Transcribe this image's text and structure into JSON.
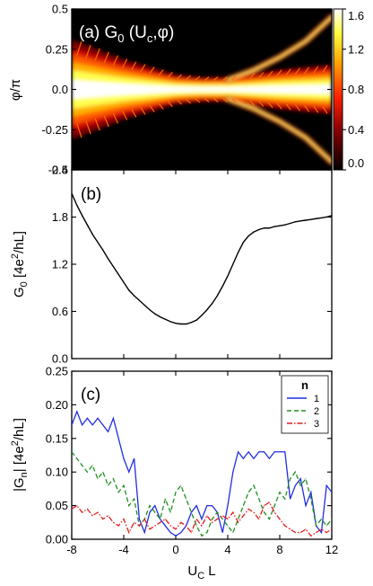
{
  "chart_data": [
    {
      "type": "heatmap",
      "panel": "(a)",
      "title_parts": {
        "prefix": "(a) G",
        "sub0": "0",
        "mid": " (U",
        "subc": "c",
        "suffix": ",φ)"
      },
      "ylabel": "φ/π",
      "xlim": [
        -8,
        12
      ],
      "ylim": [
        -0.5,
        0.5
      ],
      "yticks": [
        "-0.5",
        "-0.25",
        "0.0",
        "0.25",
        "0.5"
      ],
      "yticks_values": [
        -0.5,
        -0.25,
        0,
        0.25,
        0.5
      ],
      "colorbar": {
        "range": [
          0,
          1.6
        ],
        "ticks": [
          "0.0",
          "0.4",
          "0.8",
          "1.2",
          "1.6"
        ],
        "colormap": "hot",
        "colors": [
          "#000000",
          "#8b0000",
          "#ff2000",
          "#ff9a00",
          "#ffff40",
          "#ffffff"
        ]
      },
      "description_values": {
        "central_band_halfwidth_phi": [
          [
            -8,
            0.2
          ],
          [
            -4,
            0.12
          ],
          [
            0,
            0.06
          ],
          [
            2,
            0.05
          ],
          [
            4,
            0.05
          ],
          [
            8,
            0.08
          ],
          [
            12,
            0.1
          ]
        ],
        "upper_branch_phi": [
          [
            4,
            0.06
          ],
          [
            6,
            0.12
          ],
          [
            8,
            0.2
          ],
          [
            10,
            0.3
          ],
          [
            12,
            0.45
          ]
        ],
        "lower_branch_phi": [
          [
            4,
            -0.06
          ],
          [
            6,
            -0.12
          ],
          [
            8,
            -0.2
          ],
          [
            10,
            -0.3
          ],
          [
            12,
            -0.45
          ]
        ]
      }
    },
    {
      "type": "line",
      "panel": "(b)",
      "ylabel_parts": {
        "a": "G",
        "sub": "0",
        "b": " [4e",
        "sup": "2",
        "c": "/hL]"
      },
      "xlim": [
        -8,
        12
      ],
      "ylim": [
        0,
        2.4
      ],
      "yticks": [
        "0.0",
        "0.6",
        "1.2",
        "1.8",
        "2.4"
      ],
      "yticks_values": [
        0,
        0.6,
        1.2,
        1.8,
        2.4
      ],
      "series": [
        {
          "color": "#000000",
          "x": [
            -8,
            -7.6,
            -7.2,
            -6.8,
            -6.4,
            -6,
            -5.6,
            -5.2,
            -4.8,
            -4.4,
            -4,
            -3.6,
            -3.2,
            -2.8,
            -2.4,
            -2,
            -1.6,
            -1.2,
            -0.8,
            -0.4,
            0,
            0.4,
            0.8,
            1.2,
            1.6,
            2,
            2.4,
            2.8,
            3.2,
            3.6,
            4,
            4.4,
            4.8,
            5.2,
            5.6,
            6,
            6.4,
            6.8,
            7.2,
            7.6,
            8,
            8.4,
            8.8,
            9.2,
            9.6,
            10,
            10.4,
            10.8,
            11.2,
            11.6,
            12
          ],
          "values": [
            2.1,
            1.95,
            1.82,
            1.7,
            1.58,
            1.48,
            1.38,
            1.27,
            1.17,
            1.07,
            0.97,
            0.87,
            0.8,
            0.74,
            0.68,
            0.62,
            0.57,
            0.53,
            0.5,
            0.47,
            0.45,
            0.44,
            0.44,
            0.46,
            0.49,
            0.55,
            0.62,
            0.7,
            0.8,
            0.92,
            1.05,
            1.2,
            1.35,
            1.48,
            1.56,
            1.61,
            1.64,
            1.66,
            1.66,
            1.68,
            1.69,
            1.7,
            1.72,
            1.74,
            1.75,
            1.76,
            1.77,
            1.78,
            1.79,
            1.8,
            1.82
          ]
        }
      ]
    },
    {
      "type": "line",
      "panel": "(c)",
      "xlabel": "U",
      "xlabel_sub": "C",
      "xlabel_suffix": " L",
      "ylabel_parts": {
        "a": "|G",
        "sub": "n",
        "b": "| [4e",
        "sup": "2",
        "c": "/hL]"
      },
      "xlim": [
        -8,
        12
      ],
      "ylim": [
        0,
        0.25
      ],
      "xticks": [
        "-8",
        "-4",
        "0",
        "4",
        "8",
        "12"
      ],
      "xticks_values": [
        -8,
        -4,
        0,
        4,
        8,
        12
      ],
      "yticks": [
        "0.00",
        "0.05",
        "0.10",
        "0.15",
        "0.20",
        "0.25"
      ],
      "yticks_values": [
        0,
        0.05,
        0.1,
        0.15,
        0.2,
        0.25
      ],
      "legend": {
        "title": "n",
        "placement": "top-right"
      },
      "series": [
        {
          "name": "1",
          "color": "#1f2ee0",
          "dash": "",
          "x": [
            -8,
            -7.6,
            -7.2,
            -6.8,
            -6.4,
            -6,
            -5.6,
            -5.2,
            -4.8,
            -4.4,
            -4,
            -3.6,
            -3.2,
            -2.8,
            -2.4,
            -2,
            -1.6,
            -1.2,
            -0.8,
            -0.4,
            0,
            0.4,
            0.8,
            1.2,
            1.6,
            2,
            2.4,
            2.8,
            3.2,
            3.6,
            4,
            4.4,
            4.8,
            5.2,
            5.6,
            6,
            6.4,
            6.8,
            7.2,
            7.6,
            8,
            8.4,
            8.8,
            9.2,
            9.6,
            10,
            10.4,
            10.8,
            11.2,
            11.6,
            12
          ],
          "values": [
            0.17,
            0.19,
            0.17,
            0.18,
            0.17,
            0.18,
            0.17,
            0.16,
            0.18,
            0.15,
            0.12,
            0.1,
            0.12,
            0.03,
            0.01,
            0.04,
            0.05,
            0.03,
            0.02,
            0.01,
            0.005,
            0.01,
            0.02,
            0.04,
            0.05,
            0.03,
            0.05,
            0.05,
            0.04,
            0.01,
            0.05,
            0.1,
            0.13,
            0.12,
            0.13,
            0.12,
            0.13,
            0.13,
            0.12,
            0.13,
            0.13,
            0.13,
            0.06,
            0.08,
            0.09,
            0.05,
            0.07,
            0.02,
            0.01,
            0.08,
            0.07
          ]
        },
        {
          "name": "2",
          "color": "#1e8f1e",
          "dash": "5,3",
          "x": [
            -8,
            -7.6,
            -7.2,
            -6.8,
            -6.4,
            -6,
            -5.6,
            -5.2,
            -4.8,
            -4.4,
            -4,
            -3.6,
            -3.2,
            -2.8,
            -2.4,
            -2,
            -1.6,
            -1.2,
            -0.8,
            -0.4,
            0,
            0.4,
            0.8,
            1.2,
            1.6,
            2,
            2.4,
            2.8,
            3.2,
            3.6,
            4,
            4.4,
            4.8,
            5.2,
            5.6,
            6,
            6.4,
            6.8,
            7.2,
            7.6,
            8,
            8.4,
            8.8,
            9.2,
            9.6,
            10,
            10.4,
            10.8,
            11.2,
            11.6,
            12
          ],
          "values": [
            0.13,
            0.12,
            0.11,
            0.1,
            0.11,
            0.09,
            0.1,
            0.08,
            0.09,
            0.07,
            0.08,
            0.05,
            0.06,
            0.02,
            0.03,
            0.05,
            0.04,
            0.03,
            0.06,
            0.04,
            0.07,
            0.08,
            0.06,
            0.04,
            0.02,
            0.005,
            0.01,
            0.03,
            0.04,
            0.03,
            0.02,
            0.01,
            0.03,
            0.05,
            0.07,
            0.08,
            0.06,
            0.04,
            0.03,
            0.05,
            0.07,
            0.06,
            0.09,
            0.1,
            0.08,
            0.09,
            0.06,
            0.02,
            0.03,
            0.02,
            0.03
          ]
        },
        {
          "name": "3",
          "color": "#e01e1e",
          "dash": "6,2,1.5,2",
          "x": [
            -8,
            -7.6,
            -7.2,
            -6.8,
            -6.4,
            -6,
            -5.6,
            -5.2,
            -4.8,
            -4.4,
            -4,
            -3.6,
            -3.2,
            -2.8,
            -2.4,
            -2,
            -1.6,
            -1.2,
            -0.8,
            -0.4,
            0,
            0.4,
            0.8,
            1.2,
            1.6,
            2,
            2.4,
            2.8,
            3.2,
            3.6,
            4,
            4.4,
            4.8,
            5.2,
            5.6,
            6,
            6.4,
            6.8,
            7.2,
            7.6,
            8,
            8.4,
            8.8,
            9.2,
            9.6,
            10,
            10.4,
            10.8,
            11.2,
            11.6,
            12
          ],
          "values": [
            0.045,
            0.05,
            0.04,
            0.045,
            0.035,
            0.04,
            0.03,
            0.035,
            0.025,
            0.02,
            0.03,
            0.01,
            0.025,
            0.02,
            0.03,
            0.015,
            0.02,
            0.025,
            0.03,
            0.02,
            0.015,
            0.025,
            0.02,
            0.01,
            0.03,
            0.02,
            0.035,
            0.025,
            0.03,
            0.035,
            0.03,
            0.04,
            0.025,
            0.035,
            0.045,
            0.04,
            0.03,
            0.05,
            0.055,
            0.04,
            0.03,
            0.02,
            0.015,
            0.01,
            0.01,
            0.015,
            0.005,
            0.01,
            0.015,
            0.01,
            0.015
          ]
        }
      ]
    }
  ]
}
